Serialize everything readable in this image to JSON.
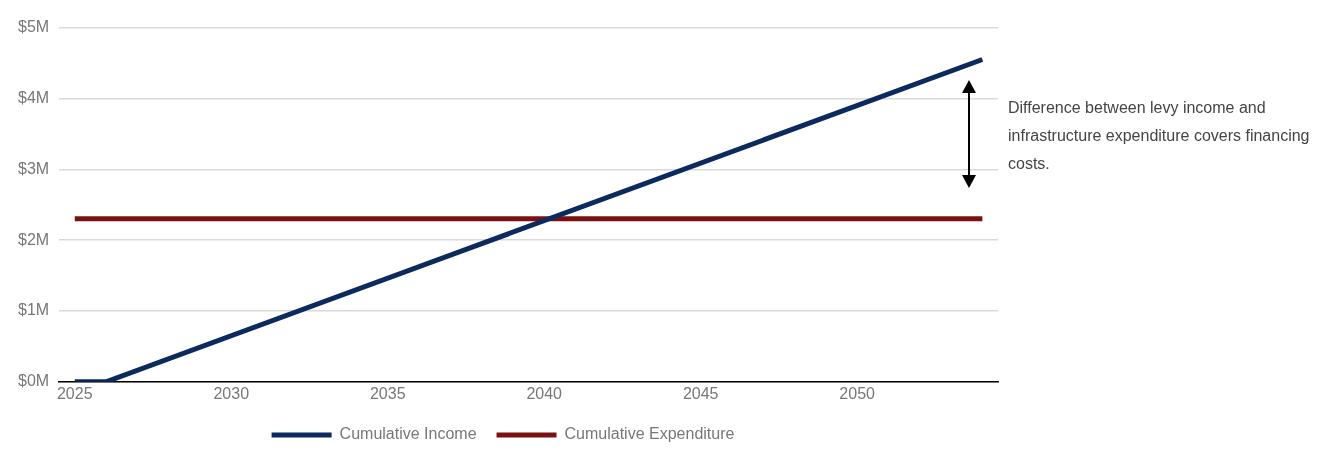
{
  "chart_data": {
    "type": "line",
    "series": [
      {
        "name": "Cumulative Income",
        "color": "#0c2a5e",
        "x": [
          2025,
          2026,
          2054
        ],
        "values": [
          0,
          0,
          4.55
        ]
      },
      {
        "name": "Cumulative Expenditure",
        "color": "#7a1111",
        "x": [
          2025,
          2054
        ],
        "values": [
          2.3,
          2.3
        ]
      }
    ],
    "xlim": [
      2024.5,
      2054.5
    ],
    "xticks": [
      2025,
      2030,
      2035,
      2040,
      2045,
      2050
    ],
    "ylim": [
      0,
      5
    ],
    "yticks": [
      {
        "value": 0,
        "label": "$0M"
      },
      {
        "value": 1,
        "label": "$1M"
      },
      {
        "value": 2,
        "label": "$2M"
      },
      {
        "value": 3,
        "label": "$3M"
      },
      {
        "value": 4,
        "label": "$4M"
      },
      {
        "value": 5,
        "label": "$5M"
      }
    ],
    "grid": "y",
    "legend": "bottom",
    "marker": "none",
    "line_style": "solid",
    "annotations": [
      "Difference between levy income and infrastructure expenditure covers financing costs."
    ]
  }
}
